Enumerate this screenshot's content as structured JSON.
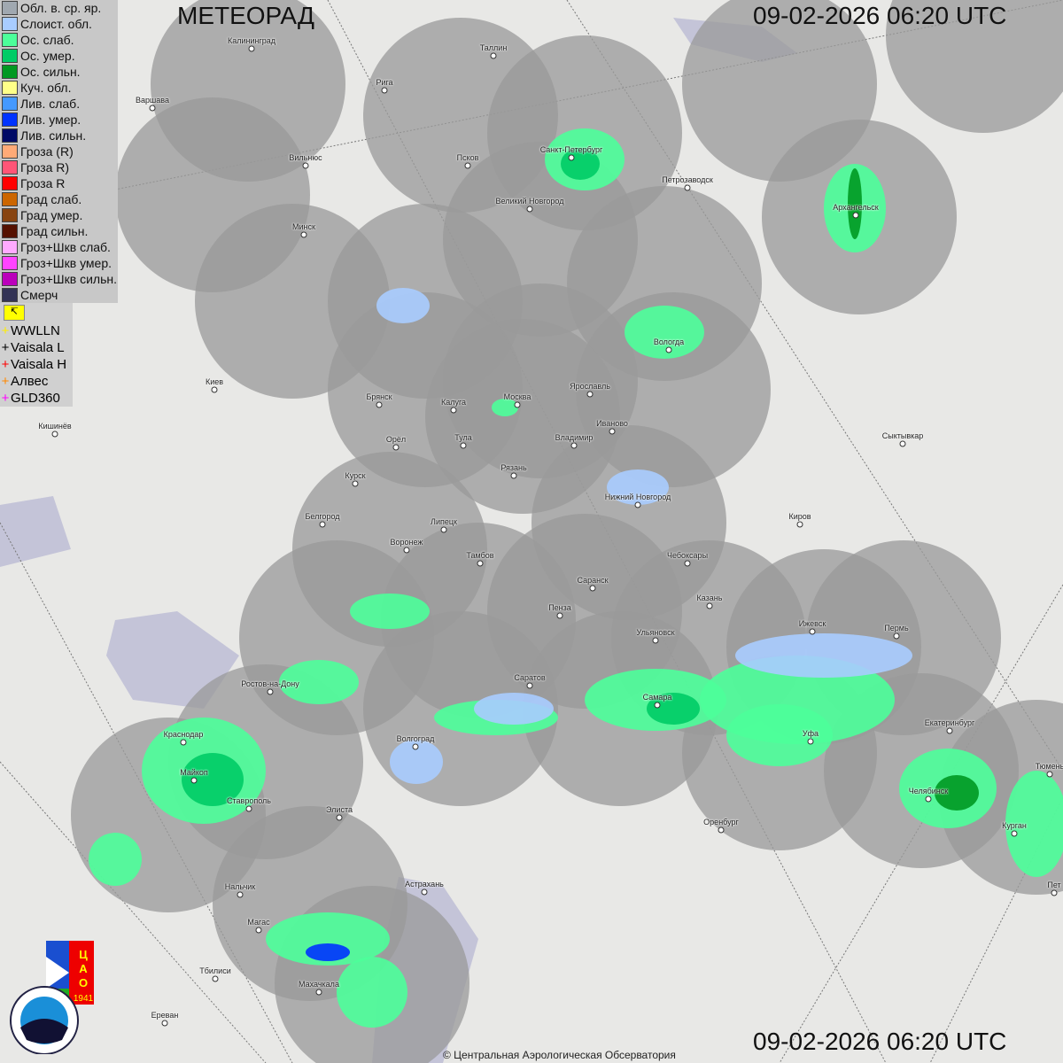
{
  "title": "МЕТЕОРАД",
  "timestamp_top": "09-02-2026  06:20 UTC",
  "timestamp_bottom": "09-02-2026  06:20 UTC",
  "legend": [
    {
      "label": "Обл. в. ср. яр.",
      "color": "#a0a8b0"
    },
    {
      "label": "Слоист. обл.",
      "color": "#a8ccff"
    },
    {
      "label": "Ос. слаб.",
      "color": "#4cff9a"
    },
    {
      "label": "Ос. умер.",
      "color": "#00cc66"
    },
    {
      "label": "Ос. сильн.",
      "color": "#009922"
    },
    {
      "label": "Куч. обл.",
      "color": "#ffff88"
    },
    {
      "label": "Лив. слаб.",
      "color": "#4499ff"
    },
    {
      "label": "Лив. умер.",
      "color": "#0033ff"
    },
    {
      "label": "Лив. сильн.",
      "color": "#000a66"
    },
    {
      "label": "Гроза (R)",
      "color": "#ffaa77"
    },
    {
      "label": "Гроза R)",
      "color": "#ff5577"
    },
    {
      "label": "Гроза R",
      "color": "#ff0000"
    },
    {
      "label": "Град слаб.",
      "color": "#cc6600"
    },
    {
      "label": "Град умер.",
      "color": "#884411"
    },
    {
      "label": "Град сильн.",
      "color": "#551100"
    },
    {
      "label": "Гроз+Шкв слаб.",
      "color": "#ffaaff"
    },
    {
      "label": "Гроз+Шкв умер.",
      "color": "#ff44ff"
    },
    {
      "label": "Гроз+Шкв сильн.",
      "color": "#bb00bb"
    },
    {
      "label": "Смерч",
      "color": "#333355"
    }
  ],
  "lightning": [
    {
      "label": "WWLLN",
      "color": "#ffee00"
    },
    {
      "label": "Vaisala L",
      "color": "#000000"
    },
    {
      "label": "Vaisala H",
      "color": "#ff0000"
    },
    {
      "label": "Алвес",
      "color": "#ff8800"
    },
    {
      "label": "GLD360",
      "color": "#ff00ff"
    }
  ],
  "cities": [
    "Калининград",
    "Таллин",
    "Рига",
    "Варшава",
    "Санкт-Петербург",
    "Псков",
    "Вильнюс",
    "Петрозаводск",
    "Великий Новгород",
    "Архангельск",
    "Минск",
    "Вологда",
    "Киев",
    "Ярославль",
    "Брянск",
    "Калуга",
    "Москва",
    "Иваново",
    "Кишинёв",
    "Сыктывкар",
    "Владимир",
    "Орёл",
    "Тула",
    "Рязань",
    "Курск",
    "Нижний Новгород",
    "Белгород",
    "Киров",
    "Липецк",
    "Воронеж",
    "Тамбов",
    "Чебоксары",
    "Саранск",
    "Казань",
    "Пенза",
    "Ульяновск",
    "Ижевск",
    "Пермь",
    "Саратов",
    "Ростов-на-Дону",
    "Самара",
    "Екатеринбург",
    "Краснодар",
    "Уфа",
    "Волгоград",
    "Майкоп",
    "Челябинск",
    "Тюмень",
    "Ставрополь",
    "Элиста",
    "Оренбург",
    "Курган",
    "Пет",
    "Астрахань",
    "Нальчик",
    "Магас",
    "Тбилиси",
    "Махачкала",
    "Ереван"
  ],
  "logos": {
    "cao": "ЦАО 1941",
    "roshydromet": "РОСГИДРОМЕТ ROSHYDROMET"
  },
  "copyright": "© Центральная Аэрологическая Обсерватория"
}
